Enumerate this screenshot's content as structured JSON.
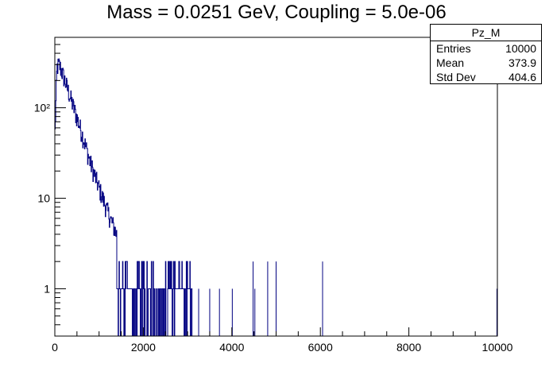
{
  "chart_data": {
    "type": "histogram",
    "title": "Mass = 0.0251 GeV, Coupling = 5.0e-06",
    "xlabel": "",
    "ylabel": "",
    "xlim": [
      0,
      10000
    ],
    "ylim": [
      0.3,
      600
    ],
    "yscale": "log",
    "xticks": [
      "0",
      "2000",
      "4000",
      "6000",
      "8000",
      "10000"
    ],
    "yticks": [
      "1",
      "10",
      "10²"
    ],
    "grid": false,
    "line_color": "#000080",
    "bins_description": "exponentially falling spectrum; peak ~300 entries near x≈100, ~10 entries near x≈1100, ~1-2 entries up to x≈3000, isolated entries near 4500, 4800, 5000, 6050, 10000",
    "sample_bins": [
      {
        "x": 0,
        "y": 45
      },
      {
        "x": 50,
        "y": 280
      },
      {
        "x": 100,
        "y": 300
      },
      {
        "x": 200,
        "y": 220
      },
      {
        "x": 400,
        "y": 110
      },
      {
        "x": 600,
        "y": 55
      },
      {
        "x": 800,
        "y": 25
      },
      {
        "x": 1000,
        "y": 13
      },
      {
        "x": 1200,
        "y": 7
      },
      {
        "x": 1500,
        "y": 3
      },
      {
        "x": 1800,
        "y": 2
      },
      {
        "x": 2200,
        "y": 1
      },
      {
        "x": 2800,
        "y": 2
      },
      {
        "x": 3500,
        "y": 1
      },
      {
        "x": 4500,
        "y": 2
      },
      {
        "x": 4800,
        "y": 2
      },
      {
        "x": 5000,
        "y": 2
      },
      {
        "x": 6050,
        "y": 2
      },
      {
        "x": 10000,
        "y": 1
      }
    ]
  },
  "stats": {
    "name": "Pz_M",
    "rows": [
      {
        "label": "Entries",
        "value": "10000"
      },
      {
        "label": "Mean",
        "value": "373.9"
      },
      {
        "label": "Std Dev",
        "value": "404.6"
      }
    ]
  }
}
